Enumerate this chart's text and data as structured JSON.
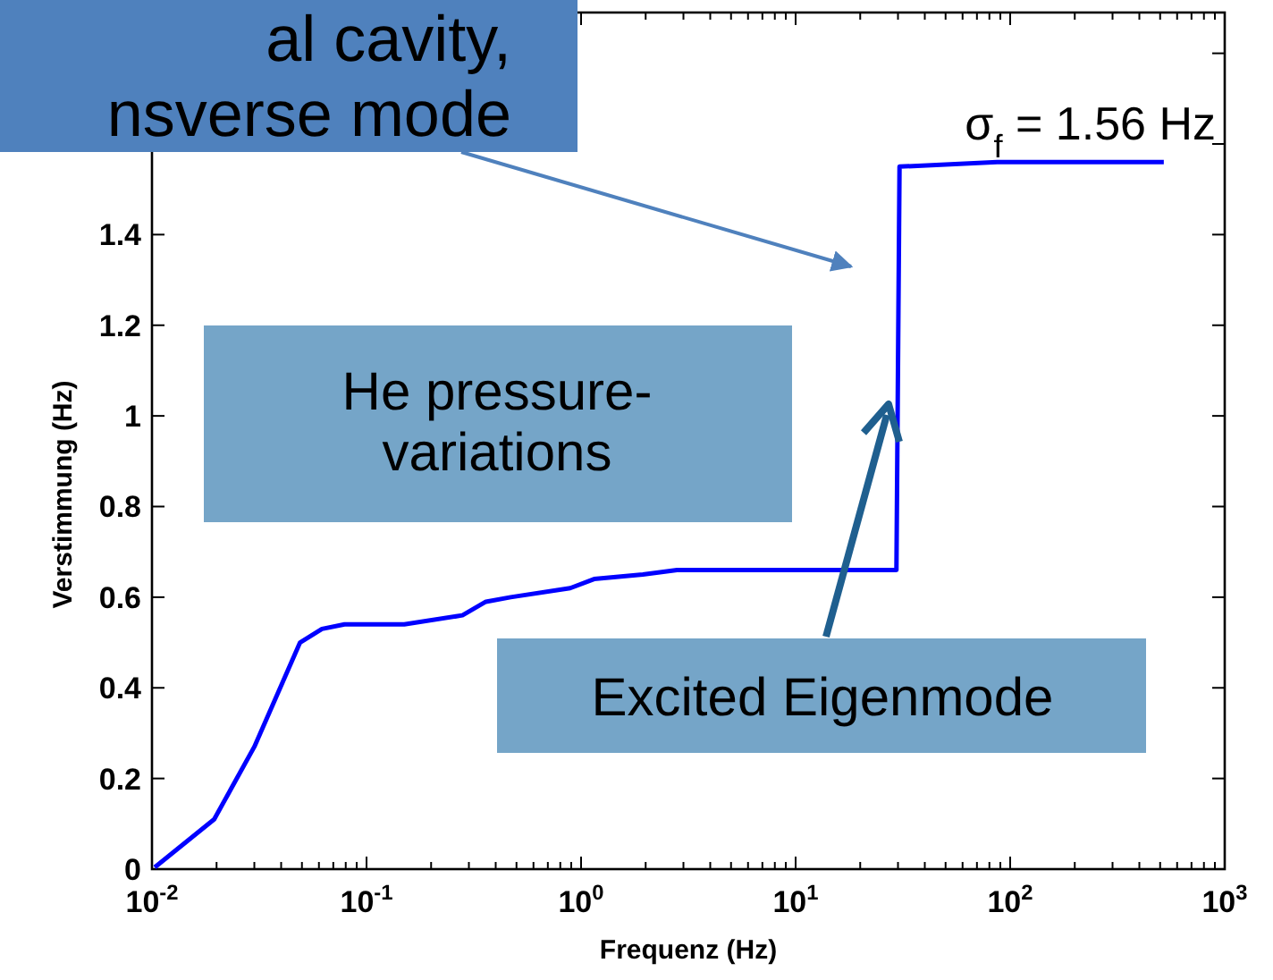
{
  "chart_data": {
    "type": "line",
    "xlabel": "Frequenz (Hz)",
    "ylabel": "Verstimmung (Hz)",
    "log": "x",
    "grid": false,
    "line_style": "solid",
    "xlim": [
      0.01,
      1000
    ],
    "ylim": [
      0,
      1.89
    ],
    "xticks": [
      {
        "value": 0.01,
        "label": "10$^{-2}$"
      },
      {
        "value": 0.02,
        "label": null
      },
      {
        "value": 0.03,
        "label": null
      },
      {
        "value": 0.04,
        "label": null
      },
      {
        "value": 0.05,
        "label": null
      },
      {
        "value": 0.06,
        "label": null
      },
      {
        "value": 0.07,
        "label": null
      },
      {
        "value": 0.08,
        "label": null
      },
      {
        "value": 0.09,
        "label": null
      },
      {
        "value": 0.1,
        "label": "10$^{-1}$"
      },
      {
        "value": 0.2,
        "label": null
      },
      {
        "value": 0.3,
        "label": null
      },
      {
        "value": 0.4,
        "label": null
      },
      {
        "value": 0.5,
        "label": null
      },
      {
        "value": 0.6,
        "label": null
      },
      {
        "value": 0.7,
        "label": null
      },
      {
        "value": 0.8,
        "label": null
      },
      {
        "value": 0.9,
        "label": null
      },
      {
        "value": 1,
        "label": "10$^{0}$"
      },
      {
        "value": 2,
        "label": null
      },
      {
        "value": 3,
        "label": null
      },
      {
        "value": 4,
        "label": null
      },
      {
        "value": 5,
        "label": null
      },
      {
        "value": 6,
        "label": null
      },
      {
        "value": 7,
        "label": null
      },
      {
        "value": 8,
        "label": null
      },
      {
        "value": 9,
        "label": null
      },
      {
        "value": 10,
        "label": "10$^{1}$"
      },
      {
        "value": 20,
        "label": null
      },
      {
        "value": 30,
        "label": null
      },
      {
        "value": 40,
        "label": null
      },
      {
        "value": 50,
        "label": null
      },
      {
        "value": 60,
        "label": null
      },
      {
        "value": 70,
        "label": null
      },
      {
        "value": 80,
        "label": null
      },
      {
        "value": 90,
        "label": null
      },
      {
        "value": 100,
        "label": "10$^{2}$"
      },
      {
        "value": 200,
        "label": null
      },
      {
        "value": 300,
        "label": null
      },
      {
        "value": 400,
        "label": null
      },
      {
        "value": 500,
        "label": null
      },
      {
        "value": 600,
        "label": null
      },
      {
        "value": 700,
        "label": null
      },
      {
        "value": 800,
        "label": null
      },
      {
        "value": 900,
        "label": null
      },
      {
        "value": 1000,
        "label": "10$^{3}$"
      }
    ],
    "yticks": [
      0,
      0.2,
      0.4,
      0.6,
      0.8,
      1,
      1.2,
      1.4,
      {
        "value": 1.6,
        "label": null
      },
      {
        "value": 1.8,
        "label": null
      }
    ],
    "series": [
      {
        "color": "#0000ff",
        "x": [
          0.0103,
          0.0195,
          0.03,
          0.049,
          0.062,
          0.079,
          0.15,
          0.28,
          0.36,
          0.47,
          0.89,
          1.15,
          1.94,
          2.8,
          29.5,
          30.5,
          87,
          520
        ],
        "values": [
          0.004,
          0.11,
          0.27,
          0.5,
          0.53,
          0.54,
          0.54,
          0.56,
          0.59,
          0.6,
          0.62,
          0.64,
          0.65,
          0.66,
          0.66,
          1.55,
          1.56,
          1.56
        ]
      }
    ],
    "annotations": [
      "al cavity,\nnsverse mode",
      "σ$_{f}$ = 1.56 Hz",
      "He pressure-\nvariations",
      "Excited Eigenmode"
    ]
  }
}
